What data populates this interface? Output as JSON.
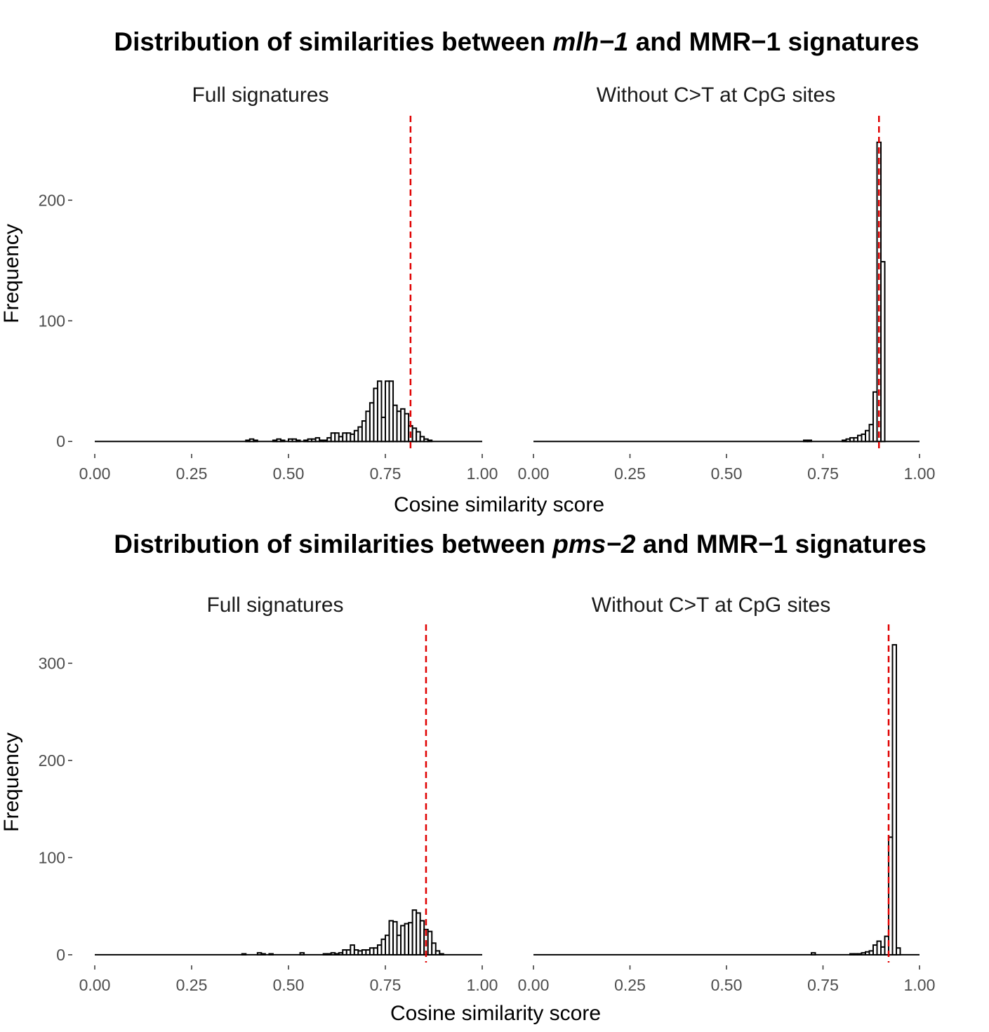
{
  "figures": [
    {
      "title_parts": [
        "Distribution of similarities between ",
        "mlh−1",
        " and MMR−1 signatures"
      ],
      "ylabel": "Frequency",
      "xlabel": "Cosine similarity score"
    },
    {
      "title_parts": [
        "Distribution of similarities between ",
        "pms−2",
        " and MMR−1 signatures"
      ],
      "ylabel": "Frequency",
      "xlabel": "Cosine similarity score"
    }
  ],
  "chart_data": [
    {
      "type": "histogram",
      "title": "Full signatures",
      "figure": "mlh-1",
      "bin_width": 0.01,
      "bins_start": [
        0.39,
        0.4,
        0.41,
        0.46,
        0.47,
        0.48,
        0.5,
        0.51,
        0.52,
        0.54,
        0.55,
        0.56,
        0.57,
        0.58,
        0.59,
        0.6,
        0.61,
        0.62,
        0.63,
        0.64,
        0.65,
        0.66,
        0.67,
        0.68,
        0.69,
        0.7,
        0.71,
        0.72,
        0.73,
        0.74,
        0.75,
        0.76,
        0.77,
        0.78,
        0.79,
        0.8,
        0.81,
        0.82,
        0.83,
        0.84,
        0.85,
        0.86,
        0.87,
        0.88
      ],
      "values": [
        1,
        2,
        1,
        1,
        2,
        1,
        2,
        2,
        1,
        1,
        2,
        2,
        3,
        1,
        1,
        3,
        7,
        7,
        4,
        7,
        7,
        6,
        9,
        12,
        17,
        25,
        32,
        44,
        50,
        20,
        50,
        50,
        30,
        25,
        27,
        23,
        13,
        11,
        8,
        4,
        2,
        1,
        0,
        0
      ],
      "vline": 0.815,
      "xlim": [
        0,
        1
      ],
      "ylim": [
        -8,
        270
      ],
      "xticks": [
        "0.00",
        "0.25",
        "0.50",
        "0.75",
        "1.00"
      ],
      "yticks": [
        "0",
        "100",
        "200"
      ]
    },
    {
      "type": "histogram",
      "title": "Without C>T at CpG sites",
      "figure": "mlh-1",
      "bin_width": 0.01,
      "bins_start": [
        0.7,
        0.71,
        0.8,
        0.81,
        0.82,
        0.83,
        0.84,
        0.85,
        0.86,
        0.87,
        0.88,
        0.89,
        0.9
      ],
      "values": [
        1,
        1,
        1,
        2,
        3,
        3,
        5,
        6,
        9,
        14,
        41,
        248,
        149
      ],
      "vline": 0.895,
      "xlim": [
        0,
        1
      ],
      "ylim": [
        -8,
        270
      ],
      "xticks": [
        "0.00",
        "0.25",
        "0.50",
        "0.75",
        "1.00"
      ],
      "yticks": []
    },
    {
      "type": "histogram",
      "title": "Full signatures",
      "figure": "pms-2",
      "bin_width": 0.01,
      "bins_start": [
        0.38,
        0.42,
        0.43,
        0.45,
        0.53,
        0.59,
        0.6,
        0.61,
        0.62,
        0.63,
        0.64,
        0.65,
        0.66,
        0.67,
        0.68,
        0.69,
        0.7,
        0.71,
        0.72,
        0.73,
        0.74,
        0.75,
        0.76,
        0.77,
        0.78,
        0.79,
        0.8,
        0.81,
        0.82,
        0.83,
        0.84,
        0.85,
        0.86,
        0.87,
        0.88,
        0.89,
        0.9
      ],
      "values": [
        1,
        2,
        1,
        1,
        2,
        1,
        1,
        2,
        1,
        2,
        5,
        5,
        10,
        5,
        4,
        5,
        5,
        7,
        7,
        10,
        16,
        20,
        35,
        34,
        20,
        30,
        32,
        33,
        46,
        43,
        35,
        26,
        24,
        12,
        4,
        1,
        0
      ],
      "vline": 0.855,
      "xlim": [
        0,
        1
      ],
      "ylim": [
        -8,
        340
      ],
      "xticks": [
        "0.00",
        "0.25",
        "0.50",
        "0.75",
        "1.00"
      ],
      "yticks": [
        "0",
        "100",
        "200",
        "300"
      ]
    },
    {
      "type": "histogram",
      "title": "Without C>T at CpG sites",
      "figure": "pms-2",
      "bin_width": 0.01,
      "bins_start": [
        0.72,
        0.82,
        0.83,
        0.84,
        0.85,
        0.86,
        0.87,
        0.88,
        0.89,
        0.9,
        0.91,
        0.92,
        0.93,
        0.94
      ],
      "values": [
        2,
        1,
        1,
        1,
        2,
        3,
        4,
        10,
        14,
        8,
        19,
        121,
        319,
        7
      ],
      "vline": 0.92,
      "xlim": [
        0,
        1
      ],
      "ylim": [
        -8,
        340
      ],
      "xticks": [
        "0.00",
        "0.25",
        "0.50",
        "0.75",
        "1.00"
      ],
      "yticks": []
    }
  ]
}
